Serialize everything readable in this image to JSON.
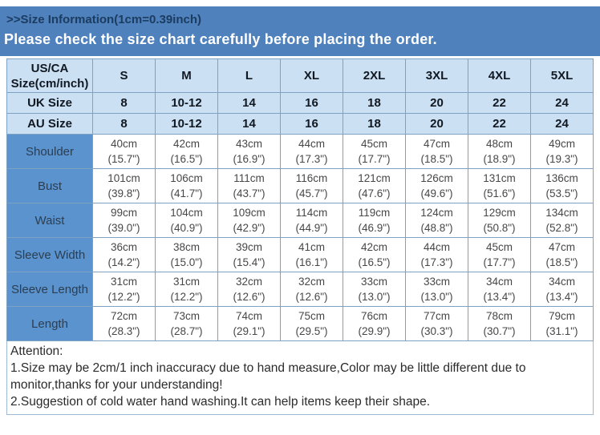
{
  "banner": {
    "title": ">>Size Information(1cm=0.39inch)",
    "subtitle": "Please check the size chart carefully before placing the order."
  },
  "table": {
    "corner_label": "US/CA Size(cm/inch)",
    "sizes": [
      "S",
      "M",
      "L",
      "XL",
      "2XL",
      "3XL",
      "4XL",
      "5XL"
    ],
    "size_rows": [
      {
        "label": "UK Size",
        "values": [
          "8",
          "10-12",
          "14",
          "16",
          "18",
          "20",
          "22",
          "24"
        ]
      },
      {
        "label": "AU Size",
        "values": [
          "8",
          "10-12",
          "14",
          "16",
          "18",
          "20",
          "22",
          "24"
        ]
      }
    ],
    "measurement_rows": [
      {
        "label": "Shoulder",
        "values": [
          {
            "cm": "40cm",
            "inch": "(15.7\")"
          },
          {
            "cm": "42cm",
            "inch": "(16.5\")"
          },
          {
            "cm": "43cm",
            "inch": "(16.9\")"
          },
          {
            "cm": "44cm",
            "inch": "(17.3\")"
          },
          {
            "cm": "45cm",
            "inch": "(17.7\")"
          },
          {
            "cm": "47cm",
            "inch": "(18.5\")"
          },
          {
            "cm": "48cm",
            "inch": "(18.9\")"
          },
          {
            "cm": "49cm",
            "inch": "(19.3\")"
          }
        ]
      },
      {
        "label": "Bust",
        "values": [
          {
            "cm": "101cm",
            "inch": "(39.8\")"
          },
          {
            "cm": "106cm",
            "inch": "(41.7\")"
          },
          {
            "cm": "111cm",
            "inch": "(43.7\")"
          },
          {
            "cm": "116cm",
            "inch": "(45.7\")"
          },
          {
            "cm": "121cm",
            "inch": "(47.6\")"
          },
          {
            "cm": "126cm",
            "inch": "(49.6\")"
          },
          {
            "cm": "131cm",
            "inch": "(51.6\")"
          },
          {
            "cm": "136cm",
            "inch": "(53.5\")"
          }
        ]
      },
      {
        "label": "Waist",
        "values": [
          {
            "cm": "99cm",
            "inch": "(39.0\")"
          },
          {
            "cm": "104cm",
            "inch": "(40.9\")"
          },
          {
            "cm": "109cm",
            "inch": "(42.9\")"
          },
          {
            "cm": "114cm",
            "inch": "(44.9\")"
          },
          {
            "cm": "119cm",
            "inch": "(46.9\")"
          },
          {
            "cm": "124cm",
            "inch": "(48.8\")"
          },
          {
            "cm": "129cm",
            "inch": "(50.8\")"
          },
          {
            "cm": "134cm",
            "inch": "(52.8\")"
          }
        ]
      },
      {
        "label": "Sleeve Width",
        "values": [
          {
            "cm": "36cm",
            "inch": "(14.2\")"
          },
          {
            "cm": "38cm",
            "inch": "(15.0\")"
          },
          {
            "cm": "39cm",
            "inch": "(15.4\")"
          },
          {
            "cm": "41cm",
            "inch": "(16.1\")"
          },
          {
            "cm": "42cm",
            "inch": "(16.5\")"
          },
          {
            "cm": "44cm",
            "inch": "(17.3\")"
          },
          {
            "cm": "45cm",
            "inch": "(17.7\")"
          },
          {
            "cm": "47cm",
            "inch": "(18.5\")"
          }
        ]
      },
      {
        "label": "Sleeve Length",
        "values": [
          {
            "cm": "31cm",
            "inch": "(12.2\")"
          },
          {
            "cm": "31cm",
            "inch": "(12.2\")"
          },
          {
            "cm": "32cm",
            "inch": "(12.6\")"
          },
          {
            "cm": "32cm",
            "inch": "(12.6\")"
          },
          {
            "cm": "33cm",
            "inch": "(13.0\")"
          },
          {
            "cm": "33cm",
            "inch": "(13.0\")"
          },
          {
            "cm": "34cm",
            "inch": "(13.4\")"
          },
          {
            "cm": "34cm",
            "inch": "(13.4\")"
          }
        ]
      },
      {
        "label": "Length",
        "values": [
          {
            "cm": "72cm",
            "inch": "(28.3\")"
          },
          {
            "cm": "73cm",
            "inch": "(28.7\")"
          },
          {
            "cm": "74cm",
            "inch": "(29.1\")"
          },
          {
            "cm": "75cm",
            "inch": "(29.5\")"
          },
          {
            "cm": "76cm",
            "inch": "(29.9\")"
          },
          {
            "cm": "77cm",
            "inch": "(30.3\")"
          },
          {
            "cm": "78cm",
            "inch": "(30.7\")"
          },
          {
            "cm": "79cm",
            "inch": "(31.1\")"
          }
        ]
      }
    ]
  },
  "attention": {
    "heading": "Attention:",
    "notes": [
      "1.Size may be 2cm/1 inch inaccuracy due to hand measure,Color may be little different due to monitor,thanks for your understanding!",
      "2.Suggestion of cold water hand washing.It can help items keep their shape."
    ]
  },
  "colors": {
    "banner_blue": "#4f81bd",
    "banner_title_navy": "#1c3c60",
    "header_light_blue": "#cbe0f2",
    "label_cell_blue": "#5b93ce",
    "border_blue": "#7fa1c3",
    "data_text_gray": "#474747"
  }
}
